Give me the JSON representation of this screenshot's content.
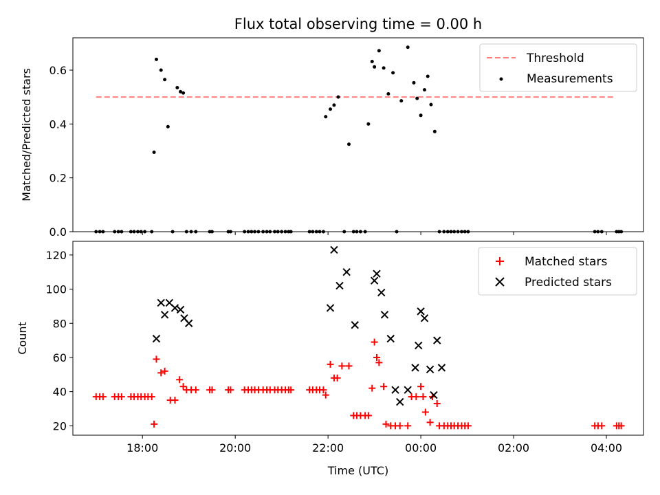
{
  "chart_data": [
    {
      "type": "scatter",
      "title": "Flux total observing time = 0.00 h",
      "xlabel": "",
      "ylabel": "Matched/Predicted stars",
      "ylim": [
        0,
        0.72
      ],
      "xlim": [
        16.5,
        28.8
      ],
      "yticks": [
        0.0,
        0.2,
        0.4,
        0.6
      ],
      "ytick_labels": [
        "0.0",
        "0.2",
        "0.4",
        "0.6"
      ],
      "grid": false,
      "legend_position": "top-right",
      "series": [
        {
          "name": "Threshold",
          "kind": "line",
          "style": "dashed",
          "color": "#ff7f7f",
          "x": [
            17.0,
            28.2
          ],
          "y": [
            0.5,
            0.5
          ]
        },
        {
          "name": "Measurements",
          "kind": "scatter",
          "color": "#000000",
          "x": [
            17.0,
            17.08,
            17.15,
            17.4,
            17.48,
            17.55,
            17.75,
            17.82,
            17.9,
            17.97,
            18.05,
            18.2,
            18.25,
            18.3,
            18.4,
            18.48,
            18.55,
            18.65,
            18.75,
            18.82,
            18.88,
            18.95,
            19.05,
            19.15,
            19.45,
            19.5,
            19.85,
            19.9,
            20.2,
            20.28,
            20.35,
            20.42,
            20.5,
            20.6,
            20.68,
            20.75,
            20.85,
            20.92,
            21.0,
            21.08,
            21.15,
            21.2,
            21.6,
            21.67,
            21.75,
            21.82,
            21.9,
            21.95,
            22.05,
            22.13,
            22.22,
            22.35,
            22.45,
            22.55,
            22.62,
            22.7,
            22.8,
            22.87,
            22.95,
            23.0,
            23.1,
            23.2,
            23.3,
            23.4,
            23.48,
            23.58,
            23.72,
            23.85,
            23.92,
            24.0,
            24.08,
            24.15,
            24.22,
            24.3,
            24.4,
            24.5,
            24.58,
            24.65,
            24.72,
            24.8,
            24.88,
            24.95,
            25.02,
            27.75,
            27.82,
            27.9,
            28.22,
            28.27,
            28.32
          ],
          "y": [
            0,
            0,
            0,
            0,
            0,
            0,
            0,
            0,
            0,
            0,
            0,
            0,
            0.295,
            0.64,
            0.6,
            0.565,
            0.39,
            0,
            0.535,
            0.52,
            0.515,
            0,
            0,
            0,
            0,
            0,
            0,
            0,
            0,
            0,
            0,
            0,
            0,
            0,
            0,
            0,
            0,
            0,
            0,
            0,
            0,
            0,
            0,
            0,
            0,
            0,
            0,
            0.427,
            0.455,
            0.47,
            0.5,
            0,
            0.325,
            0,
            0,
            0,
            0,
            0.4,
            0.632,
            0.612,
            0.672,
            0.608,
            0.512,
            0.59,
            0,
            0.486,
            0.685,
            0.553,
            0.495,
            0.432,
            0.527,
            0.577,
            0.472,
            0.372,
            0,
            0,
            0,
            0,
            0,
            0,
            0,
            0,
            0,
            0,
            0,
            0,
            0,
            0,
            0
          ]
        }
      ]
    },
    {
      "type": "scatter",
      "title": "",
      "xlabel": "Time (UTC)",
      "ylabel": "Count",
      "ylim": [
        14.5,
        128
      ],
      "xlim": [
        16.5,
        28.8
      ],
      "xticks": [
        18,
        20,
        22,
        24,
        26,
        28
      ],
      "xtick_labels": [
        "18:00",
        "20:00",
        "22:00",
        "00:00",
        "02:00",
        "04:00"
      ],
      "yticks": [
        20,
        40,
        60,
        80,
        100,
        120
      ],
      "ytick_labels": [
        "20",
        "40",
        "60",
        "80",
        "100",
        "120"
      ],
      "grid": false,
      "legend_position": "top-right",
      "series": [
        {
          "name": "Matched stars",
          "marker": "plus",
          "color": "#ff0000",
          "x": [
            17.0,
            17.08,
            17.15,
            17.4,
            17.48,
            17.55,
            17.75,
            17.82,
            17.9,
            17.97,
            18.05,
            18.12,
            18.2,
            18.25,
            18.3,
            18.4,
            18.48,
            18.6,
            18.7,
            18.8,
            18.88,
            18.95,
            19.05,
            19.15,
            19.45,
            19.5,
            19.85,
            19.9,
            20.2,
            20.28,
            20.35,
            20.42,
            20.5,
            20.6,
            20.68,
            20.75,
            20.85,
            20.92,
            21.0,
            21.08,
            21.15,
            21.2,
            21.6,
            21.67,
            21.75,
            21.82,
            21.9,
            21.95,
            22.05,
            22.13,
            22.2,
            22.3,
            22.45,
            22.55,
            22.62,
            22.7,
            22.8,
            22.87,
            22.95,
            23.0,
            23.05,
            23.1,
            23.2,
            23.25,
            23.35,
            23.45,
            23.55,
            23.72,
            23.8,
            23.9,
            24.0,
            24.05,
            24.1,
            24.2,
            24.25,
            24.35,
            24.4,
            24.5,
            24.58,
            24.65,
            24.72,
            24.8,
            24.88,
            24.95,
            25.02,
            27.75,
            27.82,
            27.9,
            28.22,
            28.27,
            28.32
          ],
          "y": [
            37,
            37,
            37,
            37,
            37,
            37,
            37,
            37,
            37,
            37,
            37,
            37,
            37,
            21,
            59,
            51,
            52,
            35,
            35,
            47,
            43,
            41,
            41,
            41,
            41,
            41,
            41,
            41,
            41,
            41,
            41,
            41,
            41,
            41,
            41,
            41,
            41,
            41,
            41,
            41,
            41,
            41,
            41,
            41,
            41,
            41,
            41,
            38,
            56,
            48,
            48,
            55,
            55,
            26,
            26,
            26,
            26,
            26,
            42,
            69,
            60,
            57,
            43,
            21,
            20,
            20,
            20,
            20,
            37,
            37,
            43,
            37,
            28,
            22,
            37,
            33,
            20,
            20,
            20,
            20,
            20,
            20,
            20,
            20,
            20,
            20,
            20,
            20,
            20,
            20,
            20
          ]
        },
        {
          "name": "Predicted stars",
          "marker": "x",
          "color": "#000000",
          "x": [
            18.3,
            18.4,
            18.48,
            18.58,
            18.7,
            18.82,
            18.9,
            19.0,
            22.05,
            22.13,
            22.25,
            22.4,
            22.58,
            23.0,
            23.05,
            23.15,
            23.22,
            23.35,
            23.45,
            23.55,
            23.72,
            23.88,
            23.95,
            24.0,
            24.08,
            24.2,
            24.28,
            24.35,
            24.45
          ],
          "y": [
            71,
            92,
            85,
            92,
            89,
            88,
            83,
            80,
            89,
            123,
            102,
            110,
            79,
            105,
            109,
            98,
            85,
            71,
            41,
            34,
            41,
            54,
            67,
            87,
            83,
            53,
            38,
            70,
            54
          ]
        }
      ]
    }
  ]
}
